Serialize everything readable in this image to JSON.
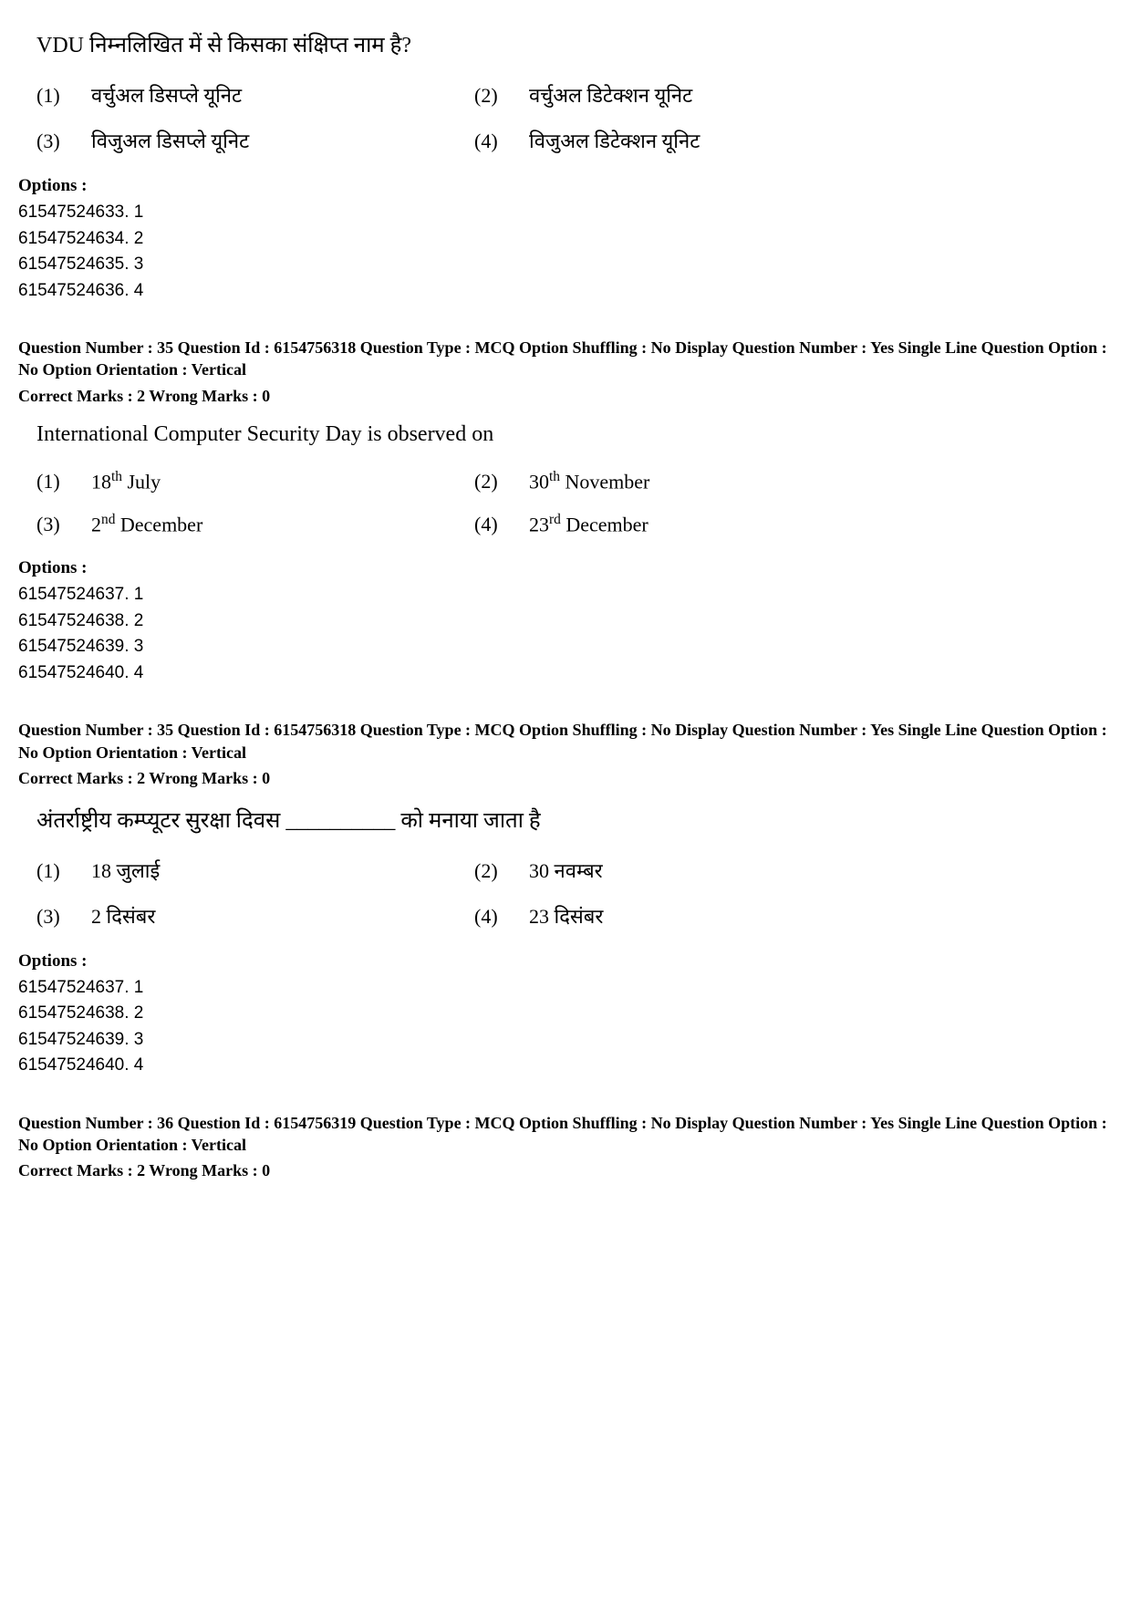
{
  "block1": {
    "question_text": "VDU निम्नलिखित में से किसका संक्षिप्त नाम है?",
    "a1_num": "(1)",
    "a1_text": "वर्चुअल डिसप्ले यूनिट",
    "a2_num": "(2)",
    "a2_text": "वर्चुअल डिटेक्शन यूनिट",
    "a3_num": "(3)",
    "a3_text": "विजुअल डिसप्ले यूनिट",
    "a4_num": "(4)",
    "a4_text": "विजुअल डिटेक्शन यूनिट",
    "options_label": "Options :",
    "opt1": "61547524633. 1",
    "opt2": "61547524634. 2",
    "opt3": "61547524635. 3",
    "opt4": "61547524636. 4"
  },
  "meta1": {
    "line1": "Question Number : 35   Question Id : 6154756318   Question Type : MCQ   Option Shuffling : No   Display Question Number : Yes   Single Line Question Option : No   Option Orientation : Vertical",
    "line2": "Correct Marks : 2   Wrong Marks : 0"
  },
  "block2": {
    "question_text": "International Computer Security Day is observed on",
    "a1_num": "(1)",
    "a1_pre": "18",
    "a1_sup": "th",
    "a1_post": " July",
    "a2_num": "(2)",
    "a2_pre": "30",
    "a2_sup": "th",
    "a2_post": " November",
    "a3_num": "(3)",
    "a3_pre": "2",
    "a3_sup": "nd",
    "a3_post": " December",
    "a4_num": "(4)",
    "a4_pre": "23",
    "a4_sup": "rd",
    "a4_post": " December",
    "options_label": "Options :",
    "opt1": "61547524637. 1",
    "opt2": "61547524638. 2",
    "opt3": "61547524639. 3",
    "opt4": "61547524640. 4"
  },
  "meta2": {
    "line1": "Question Number : 35   Question Id : 6154756318   Question Type : MCQ   Option Shuffling : No   Display Question Number : Yes   Single Line Question Option : No   Option Orientation : Vertical",
    "line2": "Correct Marks : 2   Wrong Marks : 0"
  },
  "block3": {
    "question_text": "अंतर्राष्ट्रीय कम्प्यूटर सुरक्षा दिवस __________ को मनाया जाता है",
    "a1_num": "(1)",
    "a1_text": "18 जुलाई",
    "a2_num": "(2)",
    "a2_text": "30 नवम्बर",
    "a3_num": "(3)",
    "a3_text": "2 दिसंबर",
    "a4_num": "(4)",
    "a4_text": "23 दिसंबर",
    "options_label": "Options :",
    "opt1": "61547524637. 1",
    "opt2": "61547524638. 2",
    "opt3": "61547524639. 3",
    "opt4": "61547524640. 4"
  },
  "meta3": {
    "line1": "Question Number : 36   Question Id : 6154756319   Question Type : MCQ   Option Shuffling : No   Display Question Number : Yes   Single Line Question Option : No   Option Orientation : Vertical",
    "line2": "Correct Marks : 2   Wrong Marks : 0"
  },
  "style": {
    "text_color": "#000000",
    "background_color": "#ffffff",
    "serif_font": "Times New Roman",
    "sans_font": "Verdana",
    "question_fontsize": 24,
    "answer_fontsize": 22,
    "options_fontsize": 19,
    "meta_fontsize": 18
  }
}
